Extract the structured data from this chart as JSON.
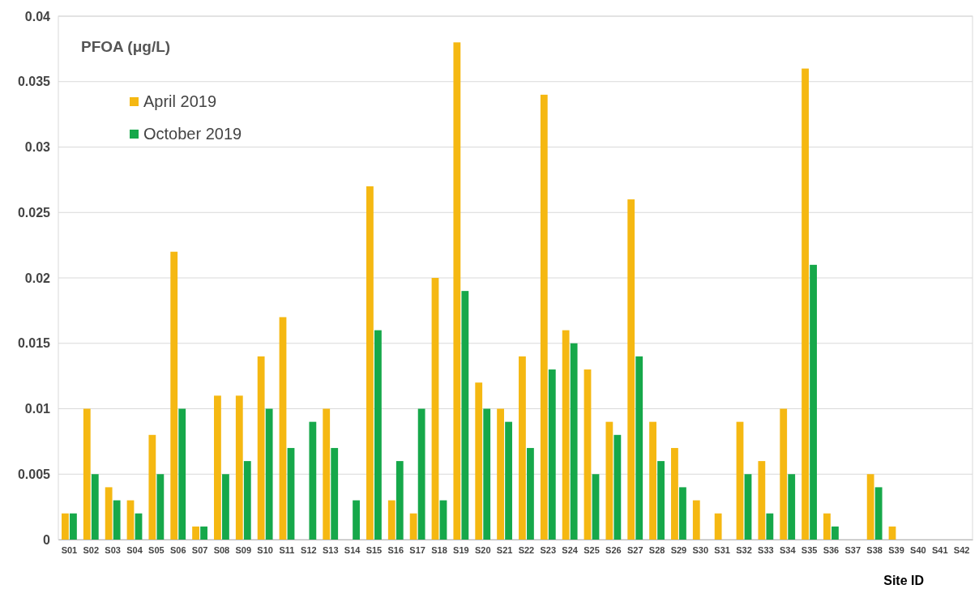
{
  "chart_data": {
    "type": "bar",
    "title": "PFOA (μg/L)",
    "xlabel": "Site ID",
    "categories": [
      "S01",
      "S02",
      "S03",
      "S04",
      "S05",
      "S06",
      "S07",
      "S08",
      "S09",
      "S10",
      "S11",
      "S12",
      "S13",
      "S14",
      "S15",
      "S16",
      "S17",
      "S18",
      "S19",
      "S20",
      "S21",
      "S22",
      "S23",
      "S24",
      "S25",
      "S26",
      "S27",
      "S28",
      "S29",
      "S30",
      "S31",
      "S32",
      "S33",
      "S34",
      "S35",
      "S36",
      "S37",
      "S38",
      "S39",
      "S40",
      "S41",
      "S42"
    ],
    "series": [
      {
        "name": "April 2019",
        "color": "#f5b812",
        "values": [
          0.002,
          0.01,
          0.004,
          0.003,
          0.008,
          0.022,
          0.001,
          0.011,
          0.011,
          0.014,
          0.017,
          0,
          0.01,
          0,
          0.027,
          0.003,
          0.002,
          0.02,
          0.038,
          0.012,
          0.01,
          0.014,
          0.034,
          0.016,
          0.013,
          0.009,
          0.026,
          0.009,
          0.007,
          0.003,
          0.002,
          0.009,
          0.006,
          0.01,
          0.036,
          0.002,
          0,
          0.005,
          0.001,
          0,
          0,
          0
        ]
      },
      {
        "name": "October 2019",
        "color": "#16a84a",
        "values": [
          0.002,
          0.005,
          0.003,
          0.002,
          0.005,
          0.01,
          0.001,
          0.005,
          0.006,
          0.01,
          0.007,
          0.009,
          0.007,
          0.003,
          0.016,
          0.006,
          0.01,
          0.003,
          0.019,
          0.01,
          0.009,
          0.007,
          0.013,
          0.015,
          0.005,
          0.008,
          0.014,
          0.006,
          0.004,
          0,
          0,
          0.005,
          0.002,
          0.005,
          0.021,
          0.001,
          0,
          0.004,
          0,
          0,
          0,
          0
        ]
      }
    ],
    "ylim": [
      0,
      0.04
    ],
    "yticks": [
      0,
      0.005,
      0.01,
      0.015,
      0.02,
      0.025,
      0.03,
      0.035,
      0.04
    ],
    "grid": "y",
    "legend": "top left"
  }
}
